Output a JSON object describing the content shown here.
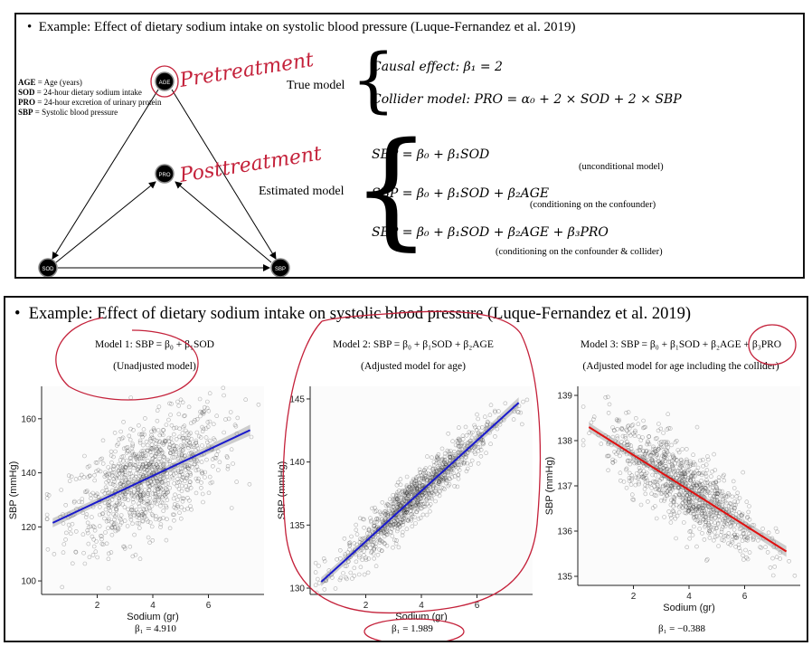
{
  "top_panel": {
    "heading": "Example: Effect of dietary sodium intake on systolic blood pressure (Luque-Fernandez et al. 2019)",
    "legend": [
      {
        "abbr": "AGE",
        "desc": " = Age (years)"
      },
      {
        "abbr": "SOD",
        "desc": " = 24-hour dietary sodium intake"
      },
      {
        "abbr": "PRO",
        "desc": " = 24-hour excretion of urinary protein"
      },
      {
        "abbr": "SBP",
        "desc": " = Systolic blood pressure"
      }
    ],
    "nodes": {
      "age": "AGE",
      "pro": "PRO",
      "sod": "SOD",
      "sbp": "SBP"
    },
    "handwriting": {
      "pretreatment": "Pretreatment",
      "posttreatment": "Posttreatment"
    },
    "true_model": {
      "label": "True model",
      "causal_effect": "Causal effect: β₁ = 2",
      "collider_model": "Collider model: PRO = α₀ + 2 × SOD + 2 × SBP"
    },
    "estimated_model": {
      "label": "Estimated model",
      "eq1": "SBP = β₀ + β₁SOD",
      "note1": "(unconditional model)",
      "eq2": "SBP = β₀ + β₁SOD + β₂AGE",
      "note2": "(conditioning on the confounder)",
      "eq3": "SBP = β₀ + β₁SOD + β₂AGE + β₃PRO",
      "note3": "(conditioning on the confounder & collider)"
    }
  },
  "bottom_panel": {
    "heading": "Example: Effect of dietary sodium intake on systolic blood pressure (Luque-Fernandez et al. 2019)",
    "plots": [
      {
        "title": "Model 1: SBP = β₀ + β₁SOD",
        "subtitle": "(Unadjusted model)",
        "beta_label": "β₁ = 4.910"
      },
      {
        "title": "Model 2: SBP = β₀ + β₁SOD + β₂AGE",
        "subtitle": "(Adjusted model for age)",
        "beta_label": "β₁ = 1.989"
      },
      {
        "title": "Model 3: SBP = β₀ + β₁SOD + β₂AGE + β₃PRO",
        "subtitle": "(Adjusted model for age including the collider)",
        "beta_label": "β₁ = −0.388"
      }
    ]
  },
  "chart_data": [
    {
      "type": "scatter",
      "title": "Model 1: SBP = β₀ + β₁SOD",
      "subtitle": "(Unadjusted model)",
      "xlabel": "Sodium (gr)",
      "ylabel": "SBP (mmHg)",
      "xlim": [
        0,
        8
      ],
      "ylim": [
        95,
        172
      ],
      "xticks": [
        2,
        4,
        6
      ],
      "yticks": [
        100,
        120,
        140,
        160
      ],
      "fit_line": {
        "x": [
          0.4,
          7.5
        ],
        "y": [
          121.5,
          155.8
        ],
        "color": "#1a1acc"
      },
      "beta1": 4.91,
      "n_points": 1000,
      "point_spread_sd": 10
    },
    {
      "type": "scatter",
      "title": "Model 2: SBP = β₀ + β₁SOD + β₂AGE",
      "subtitle": "(Adjusted model for age)",
      "xlabel": "Sodium (gr)",
      "ylabel": "SBP (mmHg)",
      "xlim": [
        0,
        8
      ],
      "ylim": [
        129.5,
        146
      ],
      "xticks": [
        2,
        4,
        6
      ],
      "yticks": [
        130,
        135,
        140,
        145
      ],
      "fit_line": {
        "x": [
          0.4,
          7.5
        ],
        "y": [
          130.5,
          144.7
        ],
        "color": "#1a1acc"
      },
      "beta1": 1.989,
      "n_points": 1000,
      "point_spread_sd": 0.9
    },
    {
      "type": "scatter",
      "title": "Model 3: SBP = β₀ + β₁SOD + β₂AGE + β₃PRO",
      "subtitle": "(Adjusted model for age including the collider)",
      "xlabel": "Sodium (gr)",
      "ylabel": "SBP (mmHg)",
      "xlim": [
        0,
        8
      ],
      "ylim": [
        134.8,
        139.2
      ],
      "xticks": [
        2,
        4,
        6
      ],
      "yticks": [
        135,
        136,
        137,
        138,
        139
      ],
      "fit_line": {
        "x": [
          0.4,
          7.5
        ],
        "y": [
          138.3,
          135.55
        ],
        "color": "#e01010"
      },
      "beta1": -0.388,
      "n_points": 1000,
      "point_spread_sd": 0.42
    }
  ]
}
